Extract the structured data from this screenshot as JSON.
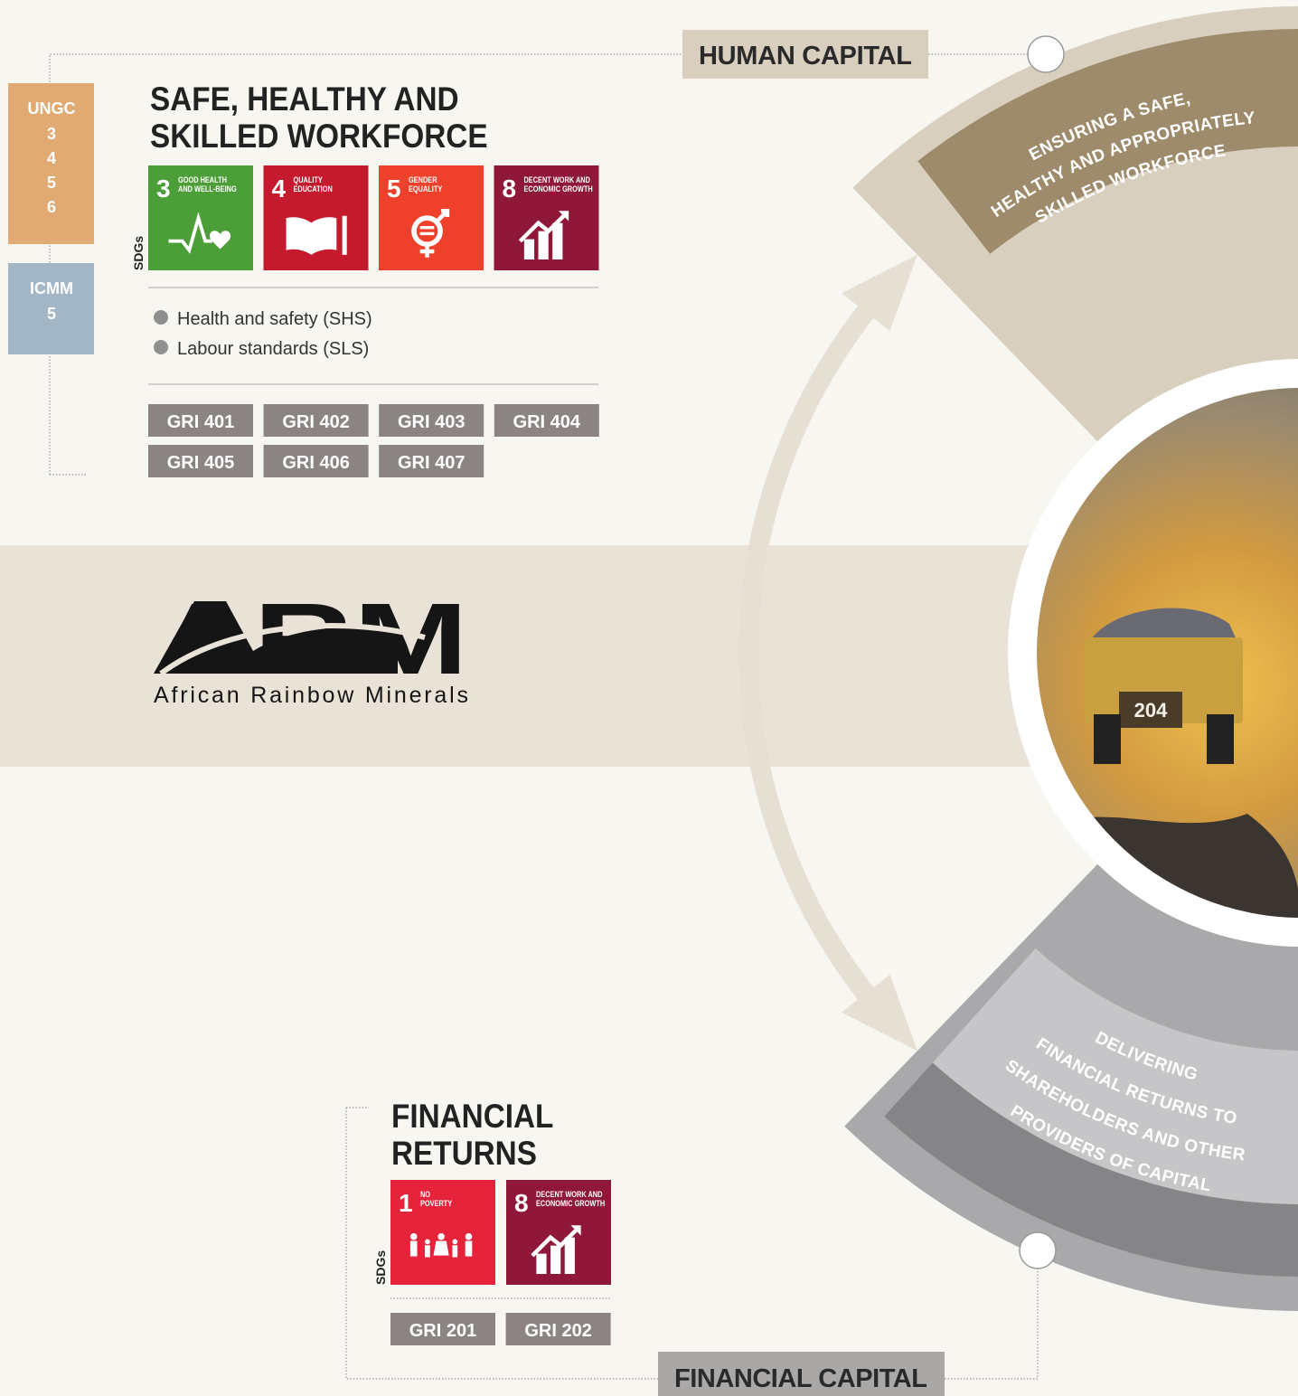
{
  "human_capital": {
    "label": "HUMAN CAPITAL",
    "title": [
      "SAFE, HEALTHY AND",
      "SKILLED WORKFORCE"
    ],
    "ungc": {
      "label": "UNGC",
      "items": [
        "3",
        "4",
        "5",
        "6"
      ]
    },
    "icmm": {
      "label": "ICMM",
      "items": [
        "5"
      ]
    },
    "sdg_label": "SDGs",
    "sdgs": [
      {
        "number": "3",
        "name": [
          "GOOD HEALTH",
          "AND WELL-BEING"
        ],
        "color": "#4c9f38"
      },
      {
        "number": "4",
        "name": [
          "QUALITY",
          "EDUCATION"
        ],
        "color": "#c5192d"
      },
      {
        "number": "5",
        "name": [
          "GENDER",
          "EQUALITY"
        ],
        "color": "#ef402b"
      },
      {
        "number": "8",
        "name": [
          "DECENT WORK AND",
          "ECONOMIC GROWTH"
        ],
        "color": "#8f1838"
      }
    ],
    "topics": [
      "Health and safety (SHS)",
      "Labour standards (SLS)"
    ],
    "gri": [
      "GRI 401",
      "GRI 402",
      "GRI 403",
      "GRI 404",
      "GRI 405",
      "GRI 406",
      "GRI 407"
    ],
    "arc_text": [
      "ENSURING A SAFE,",
      "HEALTHY AND APPROPRIATELY",
      "SKILLED WORKFORCE"
    ]
  },
  "logo": {
    "name": "ARM",
    "subtitle": "African Rainbow Minerals"
  },
  "photo": {
    "truck_number": "204"
  },
  "financial_capital": {
    "label": "FINANCIAL CAPITAL",
    "title": [
      "FINANCIAL",
      "RETURNS"
    ],
    "sdg_label": "SDGs",
    "sdgs": [
      {
        "number": "1",
        "name": [
          "NO",
          "POVERTY"
        ],
        "color": "#e5243b"
      },
      {
        "number": "8",
        "name": [
          "DECENT WORK AND",
          "ECONOMIC GROWTH"
        ],
        "color": "#8f1838"
      }
    ],
    "gri": [
      "GRI 201",
      "GRI 202"
    ],
    "arc_text": [
      "DELIVERING",
      "FINANCIAL RETURNS TO",
      "SHAREHOLDERS AND OTHER",
      "PROVIDERS OF CAPITAL"
    ]
  }
}
